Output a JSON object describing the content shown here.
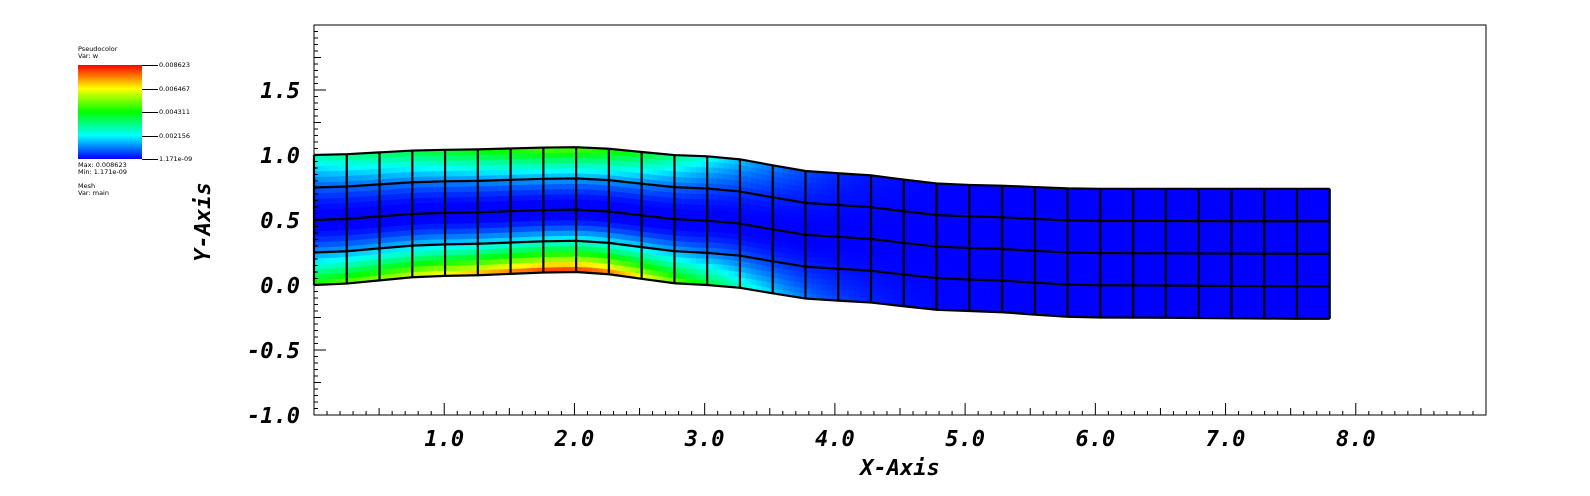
{
  "legend": {
    "plot_type": "Pseudocolor",
    "var_line": "Var: w",
    "max_line": "Max: 0.008623",
    "min_line": "Min: 1.171e-09",
    "mesh_type": "Mesh",
    "mesh_var_line": "Var: main",
    "colorbar_labels": [
      "0.008623",
      "0.006467",
      "0.004311",
      "0.002156",
      "1.171e-09"
    ],
    "colormap": [
      "#ff0000",
      "#ffff00",
      "#00ff00",
      "#00ffff",
      "#0000ff"
    ]
  },
  "chart_data": {
    "type": "heatmap",
    "description_kind": "pseudocolor field on deformed quad mesh",
    "xlabel": "X-Axis",
    "ylabel": "Y-Axis",
    "xlim": [
      0.0,
      9.0
    ],
    "ylim": [
      -1.0,
      2.0
    ],
    "x_ticks": [
      "1.0",
      "2.0",
      "3.0",
      "4.0",
      "5.0",
      "6.0",
      "7.0",
      "8.0"
    ],
    "y_ticks": [
      "-1.0",
      "-0.5",
      "0.0",
      "0.5",
      "1.0",
      "1.5"
    ],
    "field_range": [
      1.171e-09,
      0.008623
    ],
    "mesh": {
      "columns": 31,
      "rows": 4,
      "x_start": 0.0,
      "x_end": 7.8,
      "bottom_edge": [
        [
          0.0,
          0.0
        ],
        [
          1.0,
          0.07
        ],
        [
          2.0,
          0.1
        ],
        [
          3.0,
          0.0
        ],
        [
          4.0,
          -0.12
        ],
        [
          5.0,
          -0.2
        ],
        [
          6.0,
          -0.25
        ],
        [
          7.8,
          -0.26
        ]
      ],
      "top_edge": [
        [
          0.0,
          1.0
        ],
        [
          1.0,
          1.04
        ],
        [
          2.0,
          1.06
        ],
        [
          3.0,
          0.99
        ],
        [
          4.0,
          0.86
        ],
        [
          5.0,
          0.77
        ],
        [
          6.0,
          0.74
        ],
        [
          7.8,
          0.74
        ]
      ]
    }
  }
}
